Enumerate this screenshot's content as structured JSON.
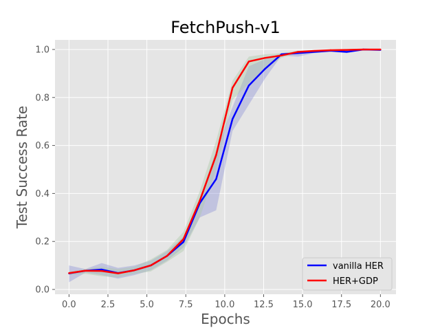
{
  "chart_data": {
    "type": "line",
    "title": "FetchPush-v1",
    "xlabel": "Epochs",
    "ylabel": "Test Success Rate",
    "xlim": [
      -0.9,
      21.0
    ],
    "ylim": [
      -0.02,
      1.04
    ],
    "xticks": [
      "0.0",
      "2.5",
      "5.0",
      "7.5",
      "10.0",
      "12.5",
      "15.0",
      "17.5",
      "20.0"
    ],
    "yticks": [
      "0.0",
      "0.2",
      "0.4",
      "0.6",
      "0.8",
      "1.0"
    ],
    "grid": true,
    "legend_position": "lower right",
    "x": [
      0.0,
      1.05,
      2.1,
      3.15,
      4.2,
      5.25,
      6.3,
      7.35,
      8.4,
      9.45,
      10.5,
      11.55,
      12.6,
      13.65,
      14.7,
      15.75,
      16.8,
      17.85,
      18.9,
      20.0
    ],
    "series": [
      {
        "name": "vanilla HER",
        "color": "#0000ff",
        "band_color": "#8c90d8",
        "values": [
          0.067,
          0.078,
          0.083,
          0.068,
          0.08,
          0.1,
          0.14,
          0.198,
          0.36,
          0.46,
          0.71,
          0.85,
          0.92,
          0.98,
          0.985,
          0.99,
          0.995,
          0.99,
          1.0,
          0.998
        ],
        "upper": [
          0.1,
          0.085,
          0.11,
          0.09,
          0.1,
          0.12,
          0.16,
          0.22,
          0.38,
          0.58,
          0.76,
          0.93,
          0.96,
          0.985,
          0.99,
          0.993,
          0.997,
          0.995,
          1.0,
          1.0
        ],
        "lower": [
          0.03,
          0.07,
          0.06,
          0.045,
          0.06,
          0.08,
          0.12,
          0.175,
          0.3,
          0.33,
          0.66,
          0.77,
          0.88,
          0.975,
          0.97,
          0.985,
          0.99,
          0.985,
          0.998,
          0.996
        ]
      },
      {
        "name": "HER+GDP",
        "color": "#ff0000",
        "band_color": "#a9c9a5",
        "values": [
          0.068,
          0.078,
          0.077,
          0.067,
          0.08,
          0.1,
          0.14,
          0.21,
          0.37,
          0.56,
          0.84,
          0.95,
          0.965,
          0.975,
          0.99,
          0.994,
          0.997,
          0.998,
          1.0,
          1.0
        ],
        "upper": [
          0.075,
          0.085,
          0.095,
          0.085,
          0.095,
          0.125,
          0.165,
          0.24,
          0.41,
          0.62,
          0.87,
          0.97,
          0.98,
          0.985,
          0.995,
          0.997,
          0.999,
          1.0,
          1.0,
          1.0
        ],
        "lower": [
          0.06,
          0.065,
          0.055,
          0.05,
          0.065,
          0.075,
          0.115,
          0.16,
          0.3,
          0.5,
          0.79,
          0.86,
          0.92,
          0.965,
          0.985,
          0.99,
          0.995,
          0.996,
          0.999,
          0.999
        ]
      }
    ]
  }
}
